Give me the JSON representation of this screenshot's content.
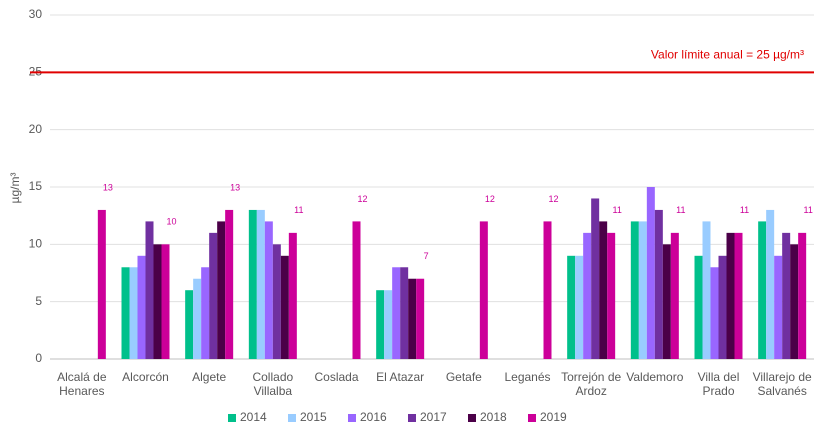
{
  "chart_data": {
    "type": "bar",
    "ylabel": "µg/m³",
    "categories": [
      "Alcalá de Henares",
      "Alcorcón",
      "Algete",
      "Collado Villalba",
      "Coslada",
      "El Atazar",
      "Getafe",
      "Leganés",
      "Torrejón de Ardoz",
      "Valdemoro",
      "Villa del Prado",
      "Villarejo de Salvanés"
    ],
    "series": [
      {
        "name": "2014",
        "color": "#00c08b",
        "values": [
          null,
          8,
          6,
          13,
          null,
          6,
          null,
          null,
          9,
          12,
          9,
          12
        ]
      },
      {
        "name": "2015",
        "color": "#99ccff",
        "values": [
          null,
          8,
          7,
          13,
          null,
          6,
          null,
          null,
          9,
          12,
          12,
          13
        ]
      },
      {
        "name": "2016",
        "color": "#9966ff",
        "values": [
          null,
          9,
          8,
          12,
          null,
          8,
          null,
          null,
          11,
          15,
          8,
          9
        ]
      },
      {
        "name": "2017",
        "color": "#7030a0",
        "values": [
          null,
          12,
          11,
          10,
          null,
          8,
          null,
          null,
          14,
          13,
          9,
          11
        ]
      },
      {
        "name": "2018",
        "color": "#4b0048",
        "values": [
          null,
          10,
          12,
          9,
          null,
          7,
          null,
          null,
          12,
          10,
          11,
          10
        ]
      },
      {
        "name": "2019",
        "color": "#cc0099",
        "values": [
          13,
          10,
          13,
          11,
          12,
          7,
          12,
          12,
          11,
          11,
          11,
          11
        ],
        "data_labels": true
      }
    ],
    "reference_line": {
      "value": 25,
      "label": "Valor límite anual = 25 µg/m³",
      "color": "#e00000"
    },
    "ylim": [
      0,
      30
    ],
    "yticks": [
      0,
      5,
      10,
      15,
      20,
      25,
      30
    ],
    "grid": true,
    "legend": "bottom"
  }
}
